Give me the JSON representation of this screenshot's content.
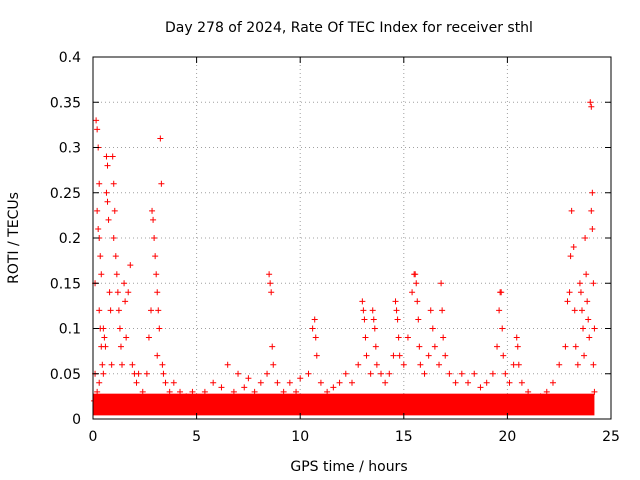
{
  "chart_data": {
    "type": "scatter",
    "title": "Day 278 of 2024, Rate Of TEC Index for receiver sthl",
    "xlabel": "GPS time / hours",
    "ylabel": "ROTI / TECUs",
    "xlim": [
      0,
      25
    ],
    "ylim": [
      0,
      0.4
    ],
    "xticks": [
      0,
      5,
      10,
      15,
      20,
      25
    ],
    "xtick_labels": [
      "0",
      "5",
      "10",
      "15",
      "20",
      "25"
    ],
    "yticks": [
      0,
      0.05,
      0.1,
      0.15,
      0.2,
      0.25,
      0.3,
      0.35,
      0.4
    ],
    "ytick_labels": [
      "0",
      "0.05",
      "0.1",
      "0.15",
      "0.2",
      "0.25",
      "0.3",
      "0.35",
      "0.4"
    ],
    "grid": true,
    "marker": "+",
    "marker_color": "#ff0000",
    "series": [
      {
        "name": "ROTI",
        "points": [
          [
            0.05,
            0.02
          ],
          [
            0.1,
            0.15
          ],
          [
            0.15,
            0.33
          ],
          [
            0.2,
            0.32
          ],
          [
            0.25,
            0.3
          ],
          [
            0.3,
            0.26
          ],
          [
            0.2,
            0.23
          ],
          [
            0.25,
            0.21
          ],
          [
            0.3,
            0.2
          ],
          [
            0.35,
            0.18
          ],
          [
            0.4,
            0.16
          ],
          [
            0.3,
            0.12
          ],
          [
            0.35,
            0.1
          ],
          [
            0.4,
            0.08
          ],
          [
            0.45,
            0.06
          ],
          [
            0.5,
            0.05
          ],
          [
            0.1,
            0.05
          ],
          [
            0.2,
            0.03
          ],
          [
            0.3,
            0.04
          ],
          [
            0.5,
            0.1
          ],
          [
            0.55,
            0.09
          ],
          [
            0.6,
            0.08
          ],
          [
            0.65,
            0.29
          ],
          [
            0.7,
            0.28
          ],
          [
            0.65,
            0.25
          ],
          [
            0.7,
            0.24
          ],
          [
            0.75,
            0.22
          ],
          [
            0.8,
            0.14
          ],
          [
            0.85,
            0.12
          ],
          [
            0.9,
            0.06
          ],
          [
            0.95,
            0.29
          ],
          [
            1.0,
            0.26
          ],
          [
            1.05,
            0.23
          ],
          [
            1.0,
            0.2
          ],
          [
            1.1,
            0.18
          ],
          [
            1.15,
            0.16
          ],
          [
            1.2,
            0.14
          ],
          [
            1.25,
            0.12
          ],
          [
            1.3,
            0.1
          ],
          [
            1.35,
            0.08
          ],
          [
            1.4,
            0.06
          ],
          [
            1.5,
            0.15
          ],
          [
            1.55,
            0.13
          ],
          [
            1.6,
            0.09
          ],
          [
            1.7,
            0.14
          ],
          [
            1.8,
            0.17
          ],
          [
            1.9,
            0.06
          ],
          [
            2.0,
            0.05
          ],
          [
            2.1,
            0.04
          ],
          [
            2.2,
            0.05
          ],
          [
            2.4,
            0.03
          ],
          [
            2.6,
            0.05
          ],
          [
            2.7,
            0.09
          ],
          [
            2.8,
            0.12
          ],
          [
            2.85,
            0.23
          ],
          [
            2.9,
            0.22
          ],
          [
            2.95,
            0.2
          ],
          [
            3.0,
            0.18
          ],
          [
            3.05,
            0.16
          ],
          [
            3.1,
            0.14
          ],
          [
            3.15,
            0.12
          ],
          [
            3.2,
            0.1
          ],
          [
            3.1,
            0.07
          ],
          [
            3.25,
            0.31
          ],
          [
            3.3,
            0.26
          ],
          [
            3.35,
            0.06
          ],
          [
            3.4,
            0.05
          ],
          [
            3.5,
            0.04
          ],
          [
            3.7,
            0.03
          ],
          [
            3.9,
            0.04
          ],
          [
            4.2,
            0.03
          ],
          [
            4.5,
            0.025
          ],
          [
            4.8,
            0.03
          ],
          [
            5.0,
            0.02
          ],
          [
            5.4,
            0.03
          ],
          [
            5.8,
            0.04
          ],
          [
            6.2,
            0.035
          ],
          [
            6.5,
            0.06
          ],
          [
            6.8,
            0.03
          ],
          [
            7.0,
            0.05
          ],
          [
            7.3,
            0.035
          ],
          [
            7.5,
            0.045
          ],
          [
            7.8,
            0.03
          ],
          [
            8.1,
            0.04
          ],
          [
            8.4,
            0.05
          ],
          [
            8.5,
            0.16
          ],
          [
            8.55,
            0.15
          ],
          [
            8.6,
            0.14
          ],
          [
            8.65,
            0.08
          ],
          [
            8.7,
            0.06
          ],
          [
            8.9,
            0.04
          ],
          [
            9.2,
            0.03
          ],
          [
            9.5,
            0.04
          ],
          [
            9.8,
            0.03
          ],
          [
            10.0,
            0.045
          ],
          [
            10.4,
            0.05
          ],
          [
            10.6,
            0.1
          ],
          [
            10.7,
            0.11
          ],
          [
            10.75,
            0.09
          ],
          [
            10.8,
            0.07
          ],
          [
            11.0,
            0.04
          ],
          [
            11.3,
            0.03
          ],
          [
            11.6,
            0.035
          ],
          [
            11.9,
            0.04
          ],
          [
            12.2,
            0.05
          ],
          [
            12.5,
            0.04
          ],
          [
            12.8,
            0.06
          ],
          [
            13.0,
            0.13
          ],
          [
            13.05,
            0.12
          ],
          [
            13.1,
            0.11
          ],
          [
            13.15,
            0.09
          ],
          [
            13.2,
            0.07
          ],
          [
            13.4,
            0.05
          ],
          [
            13.5,
            0.12
          ],
          [
            13.55,
            0.11
          ],
          [
            13.6,
            0.1
          ],
          [
            13.65,
            0.08
          ],
          [
            13.7,
            0.06
          ],
          [
            13.9,
            0.05
          ],
          [
            14.1,
            0.04
          ],
          [
            14.3,
            0.05
          ],
          [
            14.5,
            0.07
          ],
          [
            14.6,
            0.13
          ],
          [
            14.65,
            0.12
          ],
          [
            14.7,
            0.11
          ],
          [
            14.75,
            0.09
          ],
          [
            14.8,
            0.07
          ],
          [
            15.0,
            0.06
          ],
          [
            15.2,
            0.09
          ],
          [
            15.4,
            0.14
          ],
          [
            15.5,
            0.16
          ],
          [
            15.55,
            0.16
          ],
          [
            15.6,
            0.15
          ],
          [
            15.65,
            0.13
          ],
          [
            15.7,
            0.11
          ],
          [
            15.75,
            0.08
          ],
          [
            15.8,
            0.06
          ],
          [
            16.0,
            0.05
          ],
          [
            16.2,
            0.07
          ],
          [
            16.3,
            0.12
          ],
          [
            16.4,
            0.1
          ],
          [
            16.5,
            0.08
          ],
          [
            16.7,
            0.06
          ],
          [
            16.8,
            0.15
          ],
          [
            16.85,
            0.12
          ],
          [
            16.9,
            0.09
          ],
          [
            17.0,
            0.07
          ],
          [
            17.2,
            0.05
          ],
          [
            17.5,
            0.04
          ],
          [
            17.8,
            0.05
          ],
          [
            18.1,
            0.04
          ],
          [
            18.4,
            0.05
          ],
          [
            18.7,
            0.035
          ],
          [
            19.0,
            0.04
          ],
          [
            19.3,
            0.05
          ],
          [
            19.5,
            0.08
          ],
          [
            19.6,
            0.12
          ],
          [
            19.65,
            0.14
          ],
          [
            19.7,
            0.14
          ],
          [
            19.75,
            0.1
          ],
          [
            19.8,
            0.07
          ],
          [
            19.9,
            0.05
          ],
          [
            20.1,
            0.04
          ],
          [
            20.3,
            0.06
          ],
          [
            20.45,
            0.09
          ],
          [
            20.5,
            0.08
          ],
          [
            20.55,
            0.06
          ],
          [
            20.7,
            0.04
          ],
          [
            21.0,
            0.03
          ],
          [
            21.3,
            0.02
          ],
          [
            21.6,
            0.025
          ],
          [
            21.9,
            0.03
          ],
          [
            22.2,
            0.04
          ],
          [
            22.5,
            0.06
          ],
          [
            22.8,
            0.08
          ],
          [
            22.9,
            0.13
          ],
          [
            23.0,
            0.14
          ],
          [
            23.05,
            0.18
          ],
          [
            23.1,
            0.23
          ],
          [
            23.2,
            0.19
          ],
          [
            23.25,
            0.12
          ],
          [
            23.3,
            0.08
          ],
          [
            23.4,
            0.06
          ],
          [
            23.5,
            0.15
          ],
          [
            23.55,
            0.14
          ],
          [
            23.6,
            0.12
          ],
          [
            23.65,
            0.1
          ],
          [
            23.7,
            0.07
          ],
          [
            23.75,
            0.2
          ],
          [
            23.8,
            0.16
          ],
          [
            23.85,
            0.13
          ],
          [
            23.9,
            0.11
          ],
          [
            23.95,
            0.09
          ],
          [
            24.0,
            0.35
          ],
          [
            24.05,
            0.345
          ],
          [
            24.1,
            0.25
          ],
          [
            24.05,
            0.23
          ],
          [
            24.1,
            0.21
          ],
          [
            24.15,
            0.15
          ],
          [
            24.2,
            0.1
          ],
          [
            24.15,
            0.06
          ],
          [
            24.2,
            0.03
          ]
        ]
      }
    ]
  }
}
